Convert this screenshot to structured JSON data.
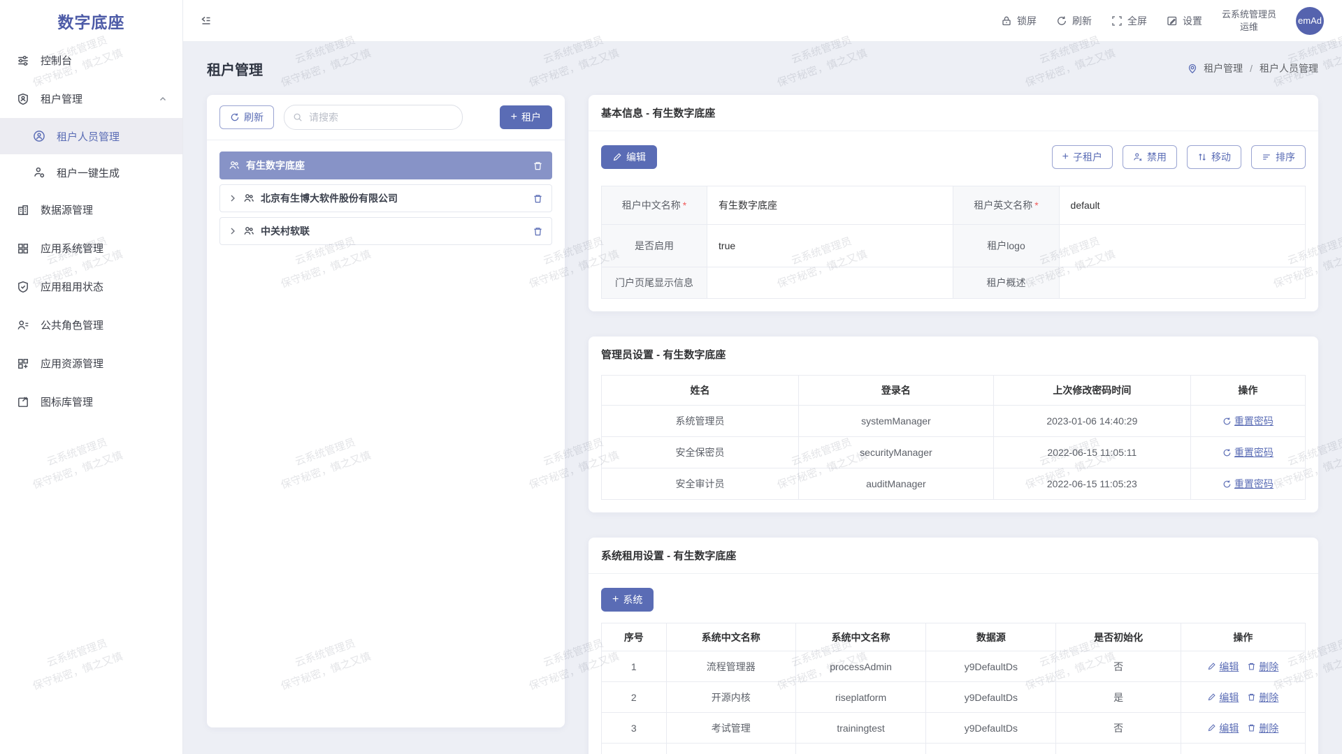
{
  "app": {
    "logo": "数字底座"
  },
  "icons": {
    "plus": "+",
    "slash": "/",
    "required_mark": "*"
  },
  "watermark": {
    "line1": "云系统管理员",
    "line2": "保守秘密，慎之又慎"
  },
  "topbar": {
    "lock_label": "锁屏",
    "refresh_label": "刷新",
    "fullscreen_label": "全屏",
    "settings_label": "设置",
    "user_line1": "云系统管理员",
    "user_line2": "运维",
    "avatar_text": "emAd"
  },
  "sidebar": {
    "items": [
      {
        "label": "控制台"
      },
      {
        "label": "租户管理"
      },
      {
        "label": "租户人员管理"
      },
      {
        "label": "租户一键生成"
      },
      {
        "label": "数据源管理"
      },
      {
        "label": "应用系统管理"
      },
      {
        "label": "应用租用状态"
      },
      {
        "label": "公共角色管理"
      },
      {
        "label": "应用资源管理"
      },
      {
        "label": "图标库管理"
      }
    ]
  },
  "page": {
    "title": "租户管理",
    "breadcrumb": [
      "租户管理",
      "租户人员管理"
    ]
  },
  "tenant_panel": {
    "refresh_label": "刷新",
    "search_placeholder": "请搜索",
    "add_tenant_label": "租户",
    "tree": [
      {
        "label": "有生数字底座"
      },
      {
        "label": "北京有生博大软件股份有限公司"
      },
      {
        "label": "中关村软联"
      }
    ]
  },
  "basic_info": {
    "title": "基本信息 - 有生数字底座",
    "edit_label": "编辑",
    "actions": {
      "sub_tenant": "子租户",
      "disable": "禁用",
      "move": "移动",
      "sort": "排序"
    },
    "rows": [
      {
        "label1": "租户中文名称",
        "value1": "有生数字底座",
        "label2": "租户英文名称",
        "value2": "default"
      },
      {
        "label1": "是否启用",
        "value1": "true",
        "label2": "租户logo",
        "value2": ""
      },
      {
        "label1": "门户页尾显示信息",
        "value1": "",
        "label2": "租户概述",
        "value2": ""
      }
    ]
  },
  "admin_settings": {
    "title": "管理员设置 - 有生数字底座",
    "columns": [
      "姓名",
      "登录名",
      "上次修改密码时间",
      "操作"
    ],
    "reset_label": "重置密码",
    "rows": [
      {
        "name": "系统管理员",
        "login": "systemManager",
        "time": "2023-01-06 14:40:29"
      },
      {
        "name": "安全保密员",
        "login": "securityManager",
        "time": "2022-06-15 11:05:11"
      },
      {
        "name": "安全审计员",
        "login": "auditManager",
        "time": "2022-06-15 11:05:23"
      }
    ]
  },
  "system_rental": {
    "title": "系统租用设置 - 有生数字底座",
    "add_system_label": "系统",
    "columns": [
      "序号",
      "系统中文名称",
      "系统中文名称",
      "数据源",
      "是否初始化",
      "操作"
    ],
    "edit_label": "编辑",
    "delete_label": "删除",
    "rows": [
      {
        "index": "1",
        "cn": "流程管理器",
        "en": "processAdmin",
        "ds": "y9DefaultDs",
        "init": "否"
      },
      {
        "index": "2",
        "cn": "开源内核",
        "en": "riseplatform",
        "ds": "y9DefaultDs",
        "init": "是"
      },
      {
        "index": "3",
        "cn": "考试管理",
        "en": "trainingtest",
        "ds": "y9DefaultDs",
        "init": "否"
      }
    ]
  }
}
